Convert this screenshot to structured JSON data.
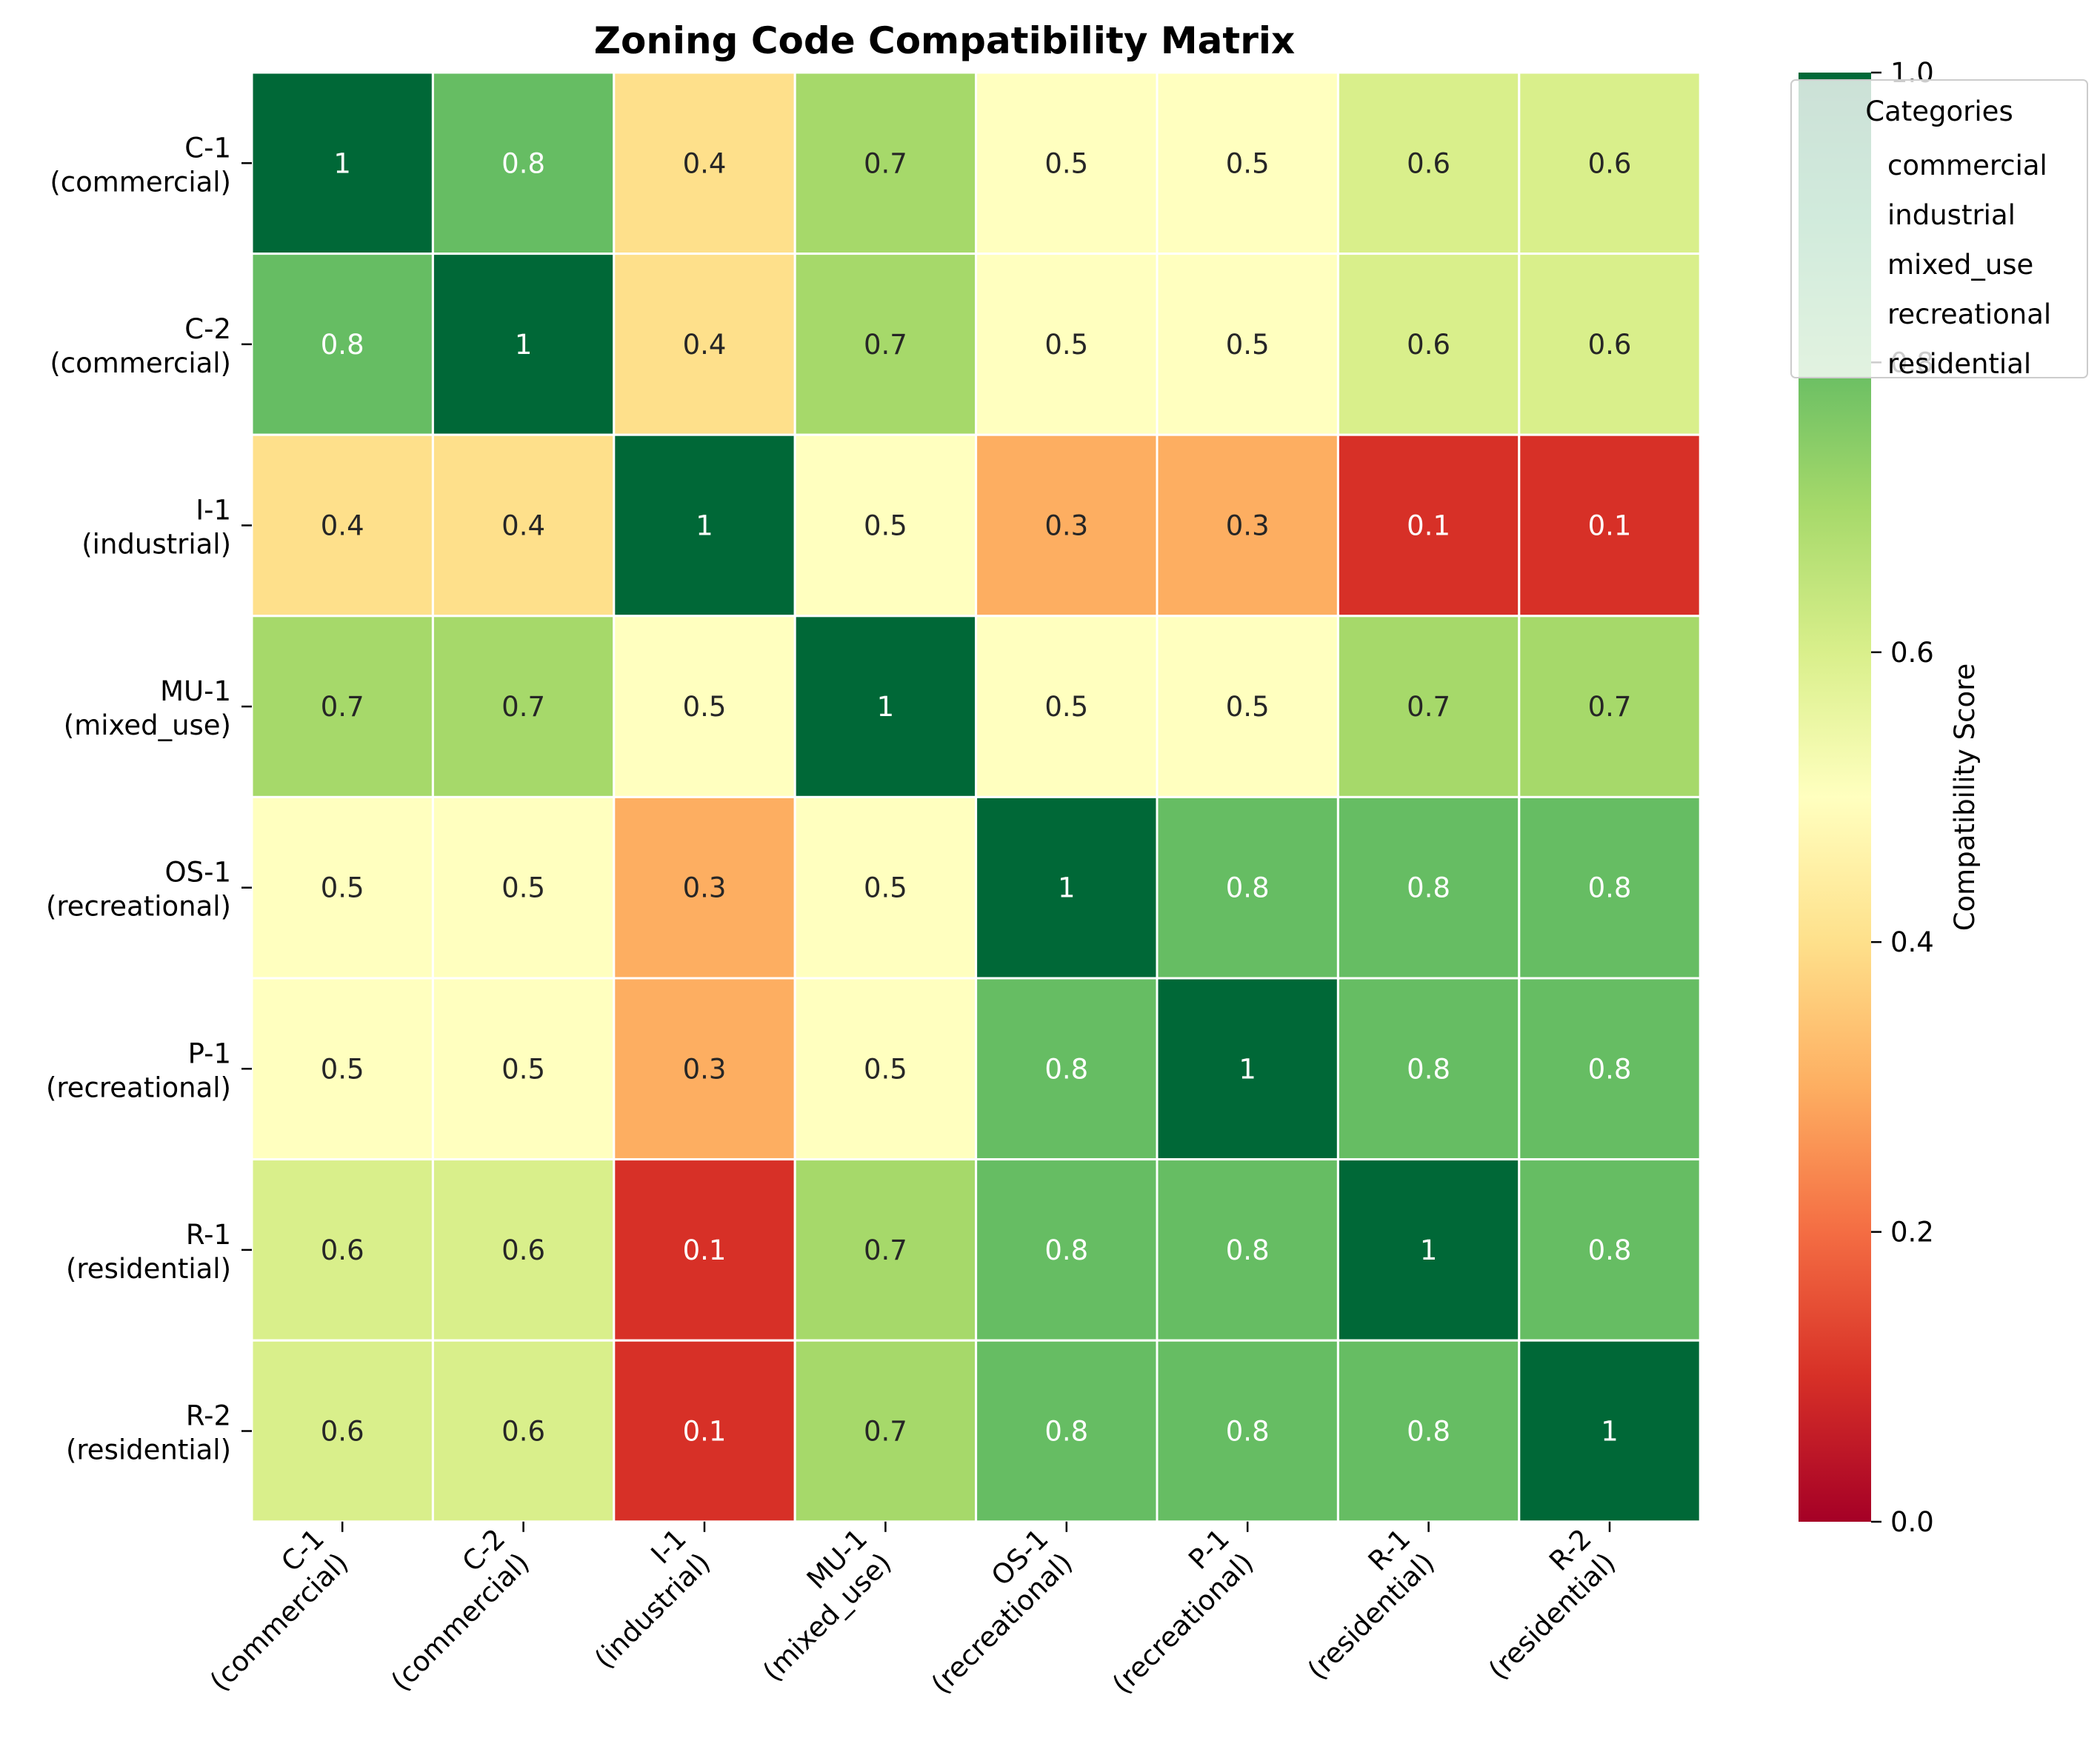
{
  "chart_data": {
    "type": "heatmap",
    "title": "Zoning Code Compatibility Matrix",
    "row_labels": [
      [
        "C-1",
        "(commercial)"
      ],
      [
        "C-2",
        "(commercial)"
      ],
      [
        "I-1",
        "(industrial)"
      ],
      [
        "MU-1",
        "(mixed_use)"
      ],
      [
        "OS-1",
        "(recreational)"
      ],
      [
        "P-1",
        "(recreational)"
      ],
      [
        "R-1",
        "(residential)"
      ],
      [
        "R-2",
        "(residential)"
      ]
    ],
    "col_labels": [
      [
        "C-1",
        "(commercial)"
      ],
      [
        "C-2",
        "(commercial)"
      ],
      [
        "I-1",
        "(industrial)"
      ],
      [
        "MU-1",
        "(mixed_use)"
      ],
      [
        "OS-1",
        "(recreational)"
      ],
      [
        "P-1",
        "(recreational)"
      ],
      [
        "R-1",
        "(residential)"
      ],
      [
        "R-2",
        "(residential)"
      ]
    ],
    "values": [
      [
        1.0,
        0.8,
        0.4,
        0.7,
        0.5,
        0.5,
        0.6,
        0.6
      ],
      [
        0.8,
        1.0,
        0.4,
        0.7,
        0.5,
        0.5,
        0.6,
        0.6
      ],
      [
        0.4,
        0.4,
        1.0,
        0.5,
        0.3,
        0.3,
        0.1,
        0.1
      ],
      [
        0.7,
        0.7,
        0.5,
        1.0,
        0.5,
        0.5,
        0.7,
        0.7
      ],
      [
        0.5,
        0.5,
        0.3,
        0.5,
        1.0,
        0.8,
        0.8,
        0.8
      ],
      [
        0.5,
        0.5,
        0.3,
        0.5,
        0.8,
        1.0,
        0.8,
        0.8
      ],
      [
        0.6,
        0.6,
        0.1,
        0.7,
        0.8,
        0.8,
        1.0,
        0.8
      ],
      [
        0.6,
        0.6,
        0.1,
        0.7,
        0.8,
        0.8,
        0.8,
        1.0
      ]
    ],
    "cell_labels": [
      [
        "1",
        "0.8",
        "0.4",
        "0.7",
        "0.5",
        "0.5",
        "0.6",
        "0.6"
      ],
      [
        "0.8",
        "1",
        "0.4",
        "0.7",
        "0.5",
        "0.5",
        "0.6",
        "0.6"
      ],
      [
        "0.4",
        "0.4",
        "1",
        "0.5",
        "0.3",
        "0.3",
        "0.1",
        "0.1"
      ],
      [
        "0.7",
        "0.7",
        "0.5",
        "1",
        "0.5",
        "0.5",
        "0.7",
        "0.7"
      ],
      [
        "0.5",
        "0.5",
        "0.3",
        "0.5",
        "1",
        "0.8",
        "0.8",
        "0.8"
      ],
      [
        "0.5",
        "0.5",
        "0.3",
        "0.5",
        "0.8",
        "1",
        "0.8",
        "0.8"
      ],
      [
        "0.6",
        "0.6",
        "0.1",
        "0.7",
        "0.8",
        "0.8",
        "1",
        "0.8"
      ],
      [
        "0.6",
        "0.6",
        "0.1",
        "0.7",
        "0.8",
        "0.8",
        "0.8",
        "1"
      ]
    ],
    "colorbar": {
      "label": "Compatibility Score",
      "range": [
        0,
        1
      ],
      "ticks": [
        "0.0",
        "0.2",
        "0.4",
        "0.6",
        "0.8",
        "1.0"
      ],
      "colormap": "RdYlGn"
    },
    "legend": {
      "title": "Categories",
      "entries": [
        "commercial",
        "industrial",
        "mixed_use",
        "recreational",
        "residential"
      ],
      "placement": "top-right"
    }
  }
}
